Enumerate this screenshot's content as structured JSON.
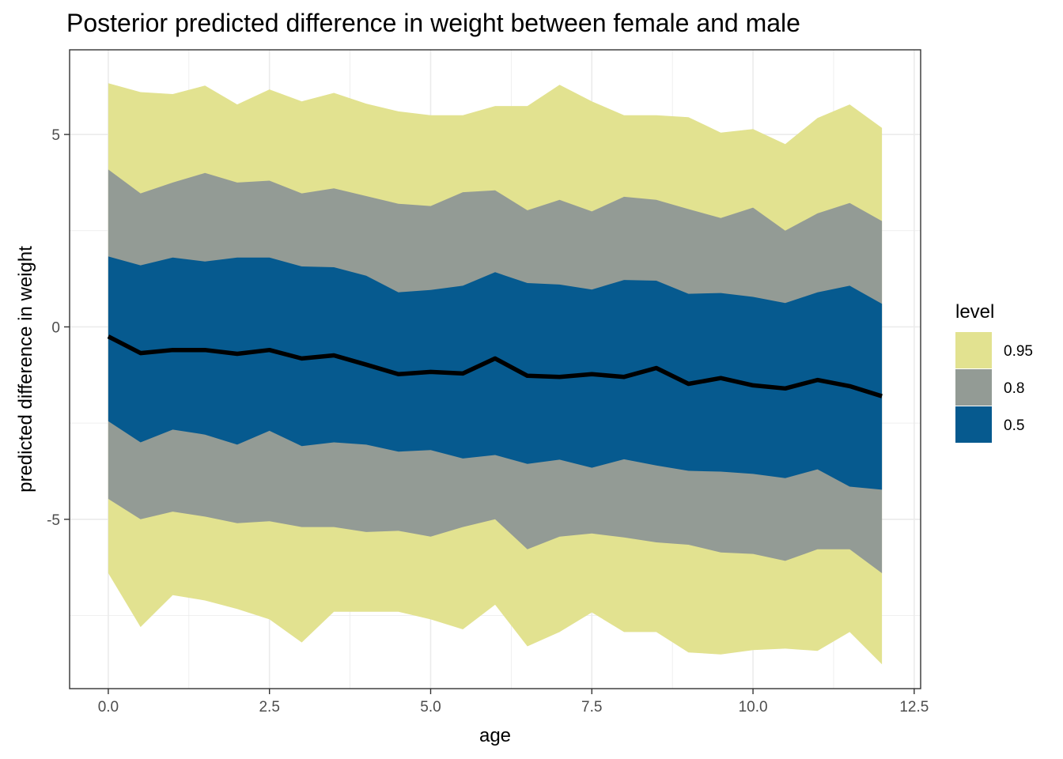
{
  "chart_data": {
    "type": "area",
    "title": "Posterior predicted difference in weight between female and male",
    "xlabel": "age",
    "ylabel": "predicted difference in weight",
    "xlim": [
      -0.6,
      12.6
    ],
    "ylim": [
      -9.4,
      7.2
    ],
    "x_ticks": [
      {
        "value": 0,
        "label": "0.0"
      },
      {
        "value": 2.5,
        "label": "2.5"
      },
      {
        "value": 5,
        "label": "5.0"
      },
      {
        "value": 7.5,
        "label": "7.5"
      },
      {
        "value": 10,
        "label": "10.0"
      },
      {
        "value": 12.5,
        "label": "12.5"
      }
    ],
    "y_ticks": [
      {
        "value": 5,
        "label": "5"
      },
      {
        "value": 0,
        "label": "0"
      },
      {
        "value": -5,
        "label": "-5"
      }
    ],
    "grid": true,
    "x": [
      0,
      0.5,
      1,
      1.5,
      2,
      2.5,
      3,
      3.5,
      4,
      4.5,
      5,
      5.5,
      6,
      6.5,
      7,
      7.5,
      8,
      8.5,
      9,
      9.5,
      10,
      10.5,
      11,
      11.5,
      12
    ],
    "median": [
      -0.25,
      -0.68,
      -0.6,
      -0.6,
      -0.7,
      -0.6,
      -0.82,
      -0.74,
      -0.98,
      -1.23,
      -1.17,
      -1.21,
      -0.82,
      -1.27,
      -1.3,
      -1.23,
      -1.3,
      -1.07,
      -1.48,
      -1.33,
      -1.52,
      -1.6,
      -1.38,
      -1.54,
      -1.8
    ],
    "legend": {
      "title": "level",
      "position": "right",
      "entries": [
        {
          "label": "0.95",
          "color": "#e2e290"
        },
        {
          "label": "0.8",
          "color": "#939b95"
        },
        {
          "label": "0.5",
          "color": "#065a8f"
        }
      ]
    },
    "bands": [
      {
        "level": "0.95",
        "color": "#e2e290",
        "upper": [
          6.33,
          6.1,
          6.05,
          6.27,
          5.78,
          6.17,
          5.86,
          6.08,
          5.8,
          5.6,
          5.5,
          5.5,
          5.74,
          5.74,
          6.29,
          5.86,
          5.5,
          5.5,
          5.45,
          5.05,
          5.14,
          4.75,
          5.43,
          5.78,
          5.17
        ],
        "lower": [
          -6.4,
          -7.8,
          -6.97,
          -7.11,
          -7.33,
          -7.6,
          -8.2,
          -7.4,
          -7.4,
          -7.4,
          -7.6,
          -7.86,
          -7.22,
          -8.3,
          -7.93,
          -7.42,
          -7.93,
          -7.93,
          -8.46,
          -8.51,
          -8.4,
          -8.36,
          -8.42,
          -7.93,
          -8.77
        ]
      },
      {
        "level": "0.8",
        "color": "#939b95",
        "upper": [
          4.09,
          3.47,
          3.75,
          4.0,
          3.75,
          3.8,
          3.47,
          3.6,
          3.4,
          3.2,
          3.14,
          3.5,
          3.55,
          3.03,
          3.3,
          3.0,
          3.38,
          3.3,
          3.06,
          2.83,
          3.1,
          2.5,
          2.95,
          3.22,
          2.75
        ],
        "lower": [
          -4.47,
          -5.0,
          -4.8,
          -4.93,
          -5.1,
          -5.05,
          -5.2,
          -5.2,
          -5.33,
          -5.3,
          -5.45,
          -5.2,
          -5.0,
          -5.78,
          -5.45,
          -5.37,
          -5.47,
          -5.6,
          -5.66,
          -5.86,
          -5.9,
          -6.08,
          -5.78,
          -5.78,
          -6.4
        ]
      },
      {
        "level": "0.5",
        "color": "#065a8f",
        "upper": [
          1.83,
          1.6,
          1.8,
          1.7,
          1.8,
          1.8,
          1.57,
          1.55,
          1.33,
          0.9,
          0.96,
          1.07,
          1.42,
          1.14,
          1.1,
          0.97,
          1.22,
          1.2,
          0.86,
          0.88,
          0.78,
          0.62,
          0.9,
          1.07,
          0.6
        ],
        "lower": [
          -2.45,
          -3.0,
          -2.67,
          -2.8,
          -3.06,
          -2.7,
          -3.1,
          -3.0,
          -3.06,
          -3.24,
          -3.2,
          -3.42,
          -3.33,
          -3.56,
          -3.45,
          -3.66,
          -3.44,
          -3.6,
          -3.74,
          -3.76,
          -3.82,
          -3.93,
          -3.7,
          -4.15,
          -4.23
        ]
      }
    ]
  }
}
